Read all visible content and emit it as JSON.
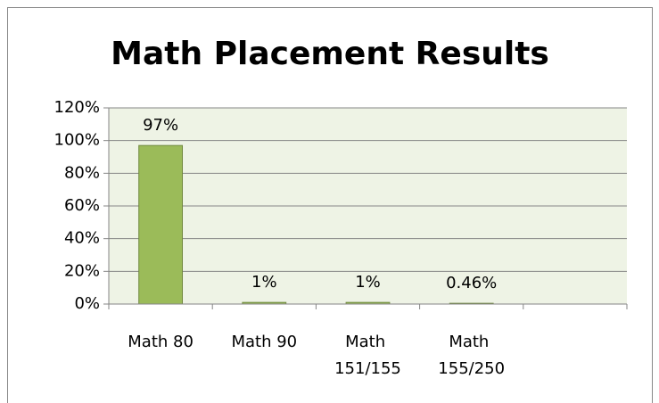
{
  "chart_data": {
    "type": "bar",
    "title": "Math Placement Results",
    "categories": [
      "Math 80",
      "Math 90",
      "Math 151/155",
      "Math 155/250",
      null
    ],
    "values": [
      97,
      1,
      1,
      0.46,
      null
    ],
    "value_labels": [
      "97%",
      "1%",
      "1%",
      "0.46%",
      null
    ],
    "color": "#9bbb59",
    "ylim": [
      0,
      120
    ],
    "yticks": [
      {
        "value": 0,
        "label": "0%"
      },
      {
        "value": 20,
        "label": "20%"
      },
      {
        "value": 40,
        "label": "40%"
      },
      {
        "value": 60,
        "label": "60%"
      },
      {
        "value": 80,
        "label": "80%"
      },
      {
        "value": 100,
        "label": "100%"
      },
      {
        "value": 120,
        "label": "120%"
      }
    ],
    "grid": true
  }
}
